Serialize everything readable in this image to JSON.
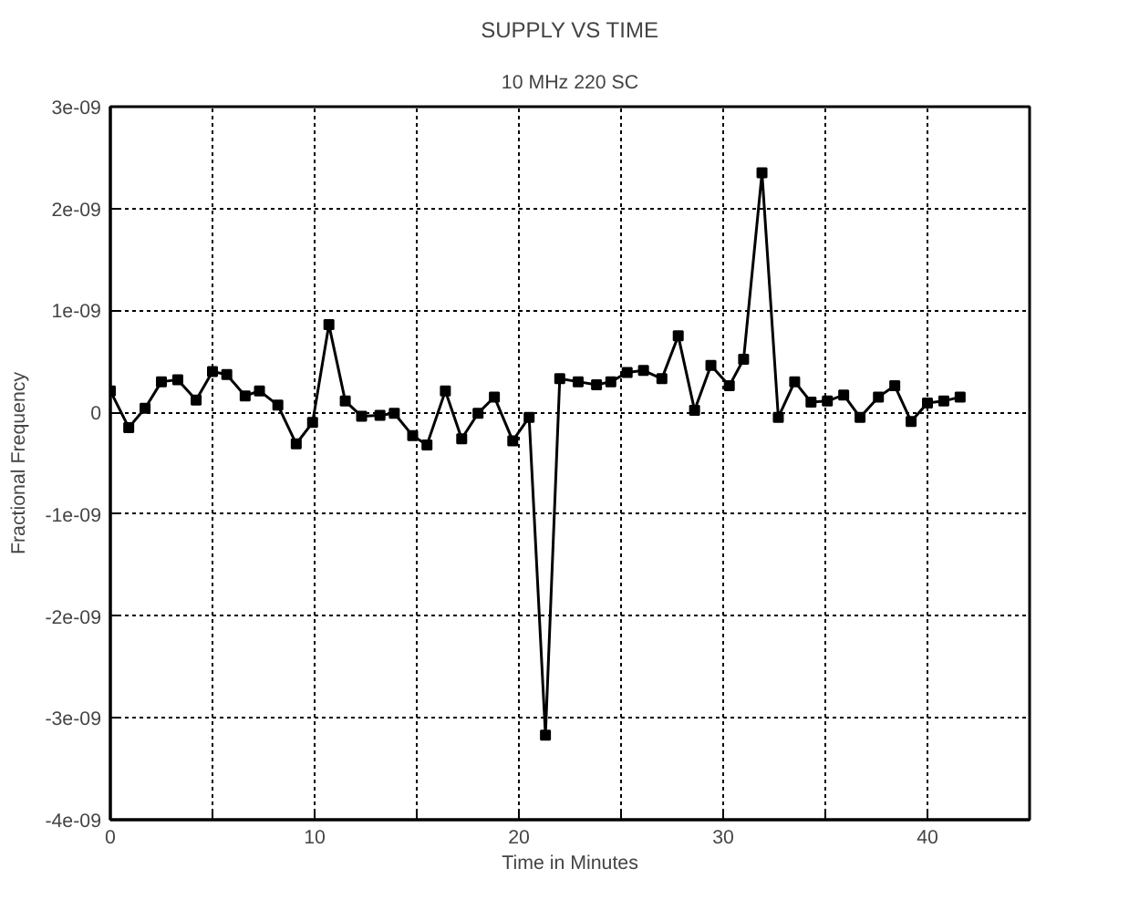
{
  "chart_data": {
    "type": "line",
    "title": "SUPPLY VS TIME",
    "subtitle": "10 MHz 220 SC",
    "xlabel": "Time in Minutes",
    "ylabel": "Fractional Frequency",
    "x": [
      0.0,
      0.9,
      1.7,
      2.5,
      3.3,
      4.2,
      5.0,
      5.7,
      6.6,
      7.3,
      8.2,
      9.1,
      9.9,
      10.7,
      11.5,
      12.3,
      13.2,
      13.9,
      14.8,
      15.5,
      16.4,
      17.2,
      18.0,
      18.8,
      19.7,
      20.5,
      21.3,
      22.0,
      22.9,
      23.8,
      24.5,
      25.3,
      26.1,
      27.0,
      27.8,
      28.6,
      29.4,
      30.3,
      31.0,
      31.9,
      32.7,
      33.5,
      34.3,
      35.1,
      35.9,
      36.7,
      37.6,
      38.4,
      39.2,
      40.0,
      40.8,
      41.6
    ],
    "series": [
      {
        "color": "#000000",
        "values": [
          2.1e-10,
          -1.5e-10,
          4e-11,
          3e-10,
          3.2e-10,
          1.2e-10,
          4e-10,
          3.7e-10,
          1.6e-10,
          2.1e-10,
          7e-11,
          -3.1e-10,
          -1e-10,
          8.6e-10,
          1.1e-10,
          -4e-11,
          -3e-11,
          -1e-11,
          -2.3e-10,
          -3.2e-10,
          2.1e-10,
          -2.6e-10,
          -1e-11,
          1.5e-10,
          -2.8e-10,
          -5e-11,
          -3.17e-09,
          3.3e-10,
          3e-10,
          2.7e-10,
          3e-10,
          3.9e-10,
          4.1e-10,
          3.3e-10,
          7.5e-10,
          2e-11,
          4.6e-10,
          2.6e-10,
          5.2e-10,
          2.35e-09,
          -5e-11,
          3e-10,
          1e-10,
          1.1e-10,
          1.7e-10,
          -5e-11,
          1.5e-10,
          2.6e-10,
          -9e-11,
          9e-11,
          1.1e-10,
          1.5e-10
        ]
      }
    ],
    "xlim": [
      0,
      45
    ],
    "ylim": [
      -4e-09,
      3e-09
    ],
    "xticks": [
      0,
      {
        "value": 5,
        "label": null
      },
      10,
      {
        "value": 15,
        "label": null
      },
      20,
      {
        "value": 25,
        "label": null
      },
      30,
      {
        "value": 35,
        "label": null
      },
      40
    ],
    "yticks": [
      {
        "value": -4e-09,
        "label": "-4e-09"
      },
      {
        "value": -3e-09,
        "label": "-3e-09"
      },
      {
        "value": -2e-09,
        "label": "-2e-09"
      },
      {
        "value": -1e-09,
        "label": "-1e-09"
      },
      0,
      {
        "value": 1e-09,
        "label": "1e-09"
      },
      {
        "value": 2e-09,
        "label": "2e-09"
      },
      {
        "value": 3e-09,
        "label": "3e-09"
      }
    ],
    "grid": true,
    "marker": "square",
    "line_style": "solid"
  }
}
